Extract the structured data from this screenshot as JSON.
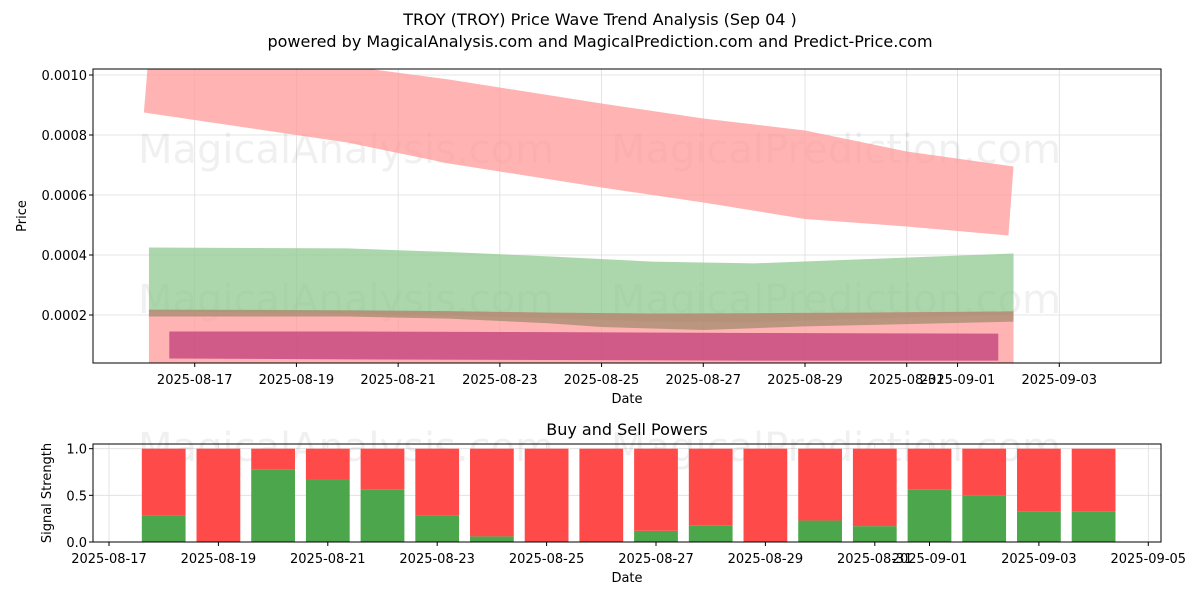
{
  "header": {
    "title": "TROY (TROY) Price Wave Trend Analysis (Sep 04 )",
    "subtitle": "powered by MagicalAnalysis.com and MagicalPrediction.com and Predict-Price.com"
  },
  "watermarks": [
    "MagicalAnalysis.com",
    "MagicalPrediction.com"
  ],
  "chart_data": [
    {
      "type": "area",
      "title": "",
      "xlabel": "Date",
      "ylabel": "Price",
      "x_start": "2025-08-16",
      "x_range": [
        "2025-08-15",
        "2025-09-05"
      ],
      "ylim": [
        4e-05,
        0.00102
      ],
      "yticks": [
        0.0002,
        0.0004,
        0.0006,
        0.0008,
        0.001
      ],
      "ytick_labels": [
        "0.0002",
        "0.0004",
        "0.0006",
        "0.0008",
        "0.0010"
      ],
      "xticks": [
        "2025-08-17",
        "2025-08-19",
        "2025-08-21",
        "2025-08-23",
        "2025-08-25",
        "2025-08-27",
        "2025-08-29",
        "2025-08-31",
        "2025-09-01",
        "2025-09-03"
      ],
      "xtick_labels": [
        "2025-08-17",
        "2025-08-19",
        "2025-08-21",
        "2025-08-23",
        "2025-08-25",
        "2025-08-27",
        "2025-08-29",
        "2025-08-31",
        "2025-09-01",
        "2025-09-03"
      ],
      "grid": true,
      "series": [
        {
          "color": "#ff9999",
          "upper": [
            [
              0.1,
              0.00108
            ],
            [
              4,
              0.00103
            ],
            [
              6,
              0.000985
            ],
            [
              9,
              0.000905
            ],
            [
              11,
              0.000855
            ],
            [
              13,
              0.000815
            ],
            [
              15,
              0.000745
            ],
            [
              17.1,
              0.000695
            ]
          ],
          "lower": [
            [
              0.0,
              0.000875
            ],
            [
              4,
              0.000775
            ],
            [
              6,
              0.000705
            ],
            [
              9,
              0.000625
            ],
            [
              11,
              0.000575
            ],
            [
              13,
              0.00052
            ],
            [
              15,
              0.000495
            ],
            [
              17.0,
              0.000465
            ]
          ]
        },
        {
          "color": "#90c990",
          "upper": [
            [
              0.1,
              0.000425
            ],
            [
              4,
              0.000422
            ],
            [
              6,
              0.00041
            ],
            [
              8,
              0.000395
            ],
            [
              10,
              0.000378
            ],
            [
              12,
              0.000372
            ],
            [
              14,
              0.000385
            ],
            [
              17.1,
              0.000405
            ]
          ],
          "lower": [
            [
              0.1,
              0.000212
            ],
            [
              4,
              0.000205
            ],
            [
              6,
              0.000198
            ],
            [
              8,
              0.00019
            ],
            [
              10,
              0.000178
            ],
            [
              12,
              0.000175
            ],
            [
              14,
              0.000188
            ],
            [
              17.1,
              0.000202
            ]
          ]
        },
        {
          "color": "#ff9999",
          "upper": [
            [
              0.1,
              0.000215
            ],
            [
              4,
              0.000213
            ],
            [
              6,
              0.000212
            ],
            [
              8,
              0.000208
            ],
            [
              10,
              0.000205
            ],
            [
              12,
              0.000206
            ],
            [
              14,
              0.000208
            ],
            [
              17.1,
              0.000212
            ]
          ],
          "lower": [
            [
              0.1,
              4e-05
            ],
            [
              17.1,
              4e-05
            ]
          ]
        },
        {
          "color": "#a38b6d",
          "upper": [
            [
              0.1,
              0.000218
            ],
            [
              4,
              0.000216
            ],
            [
              6,
              0.000213
            ],
            [
              8,
              0.000208
            ],
            [
              10,
              0.000205
            ],
            [
              12,
              0.000206
            ],
            [
              14,
              0.000208
            ],
            [
              17.1,
              0.000212
            ]
          ],
          "lower": [
            [
              0.1,
              0.000195
            ],
            [
              4,
              0.000195
            ],
            [
              6,
              0.000188
            ],
            [
              8,
              0.000172
            ],
            [
              9,
              0.00016
            ],
            [
              11,
              0.00015
            ],
            [
              13,
              0.000162
            ],
            [
              17.1,
              0.000178
            ]
          ]
        },
        {
          "color": "#c03c7a",
          "upper": [
            [
              0.5,
              0.000145
            ],
            [
              4,
              0.000145
            ],
            [
              8,
              0.000143
            ],
            [
              12,
              0.00014
            ],
            [
              16.8,
              0.000138
            ]
          ],
          "lower": [
            [
              0.5,
              5.5e-05
            ],
            [
              4,
              5.2e-05
            ],
            [
              8,
              5e-05
            ],
            [
              12,
              4.8e-05
            ],
            [
              16.8,
              4.8e-05
            ]
          ]
        }
      ]
    },
    {
      "type": "bar",
      "title": "Buy and Sell Powers",
      "xlabel": "Date",
      "ylabel": "Signal Strength",
      "x_start": "2025-08-17",
      "ylim": [
        0,
        1.05
      ],
      "yticks": [
        0.0,
        0.5,
        1.0
      ],
      "ytick_labels": [
        "0.0",
        "0.5",
        "1.0"
      ],
      "xticks": [
        "2025-08-17",
        "2025-08-19",
        "2025-08-21",
        "2025-08-23",
        "2025-08-25",
        "2025-08-27",
        "2025-08-29",
        "2025-08-31",
        "2025-09-01",
        "2025-09-03",
        "2025-09-05"
      ],
      "xtick_labels": [
        "2025-08-17",
        "2025-08-19",
        "2025-08-21",
        "2025-08-23",
        "2025-08-25",
        "2025-08-27",
        "2025-08-29",
        "2025-08-31",
        "2025-09-01",
        "2025-09-03",
        "2025-09-05"
      ],
      "categories": [
        "2025-08-18",
        "2025-08-19",
        "2025-08-20",
        "2025-08-21",
        "2025-08-22",
        "2025-08-23",
        "2025-08-24",
        "2025-08-25",
        "2025-08-26",
        "2025-08-27",
        "2025-08-28",
        "2025-08-29",
        "2025-08-30",
        "2025-08-31",
        "2025-09-01",
        "2025-09-02",
        "2025-09-03",
        "2025-09-04"
      ],
      "series": [
        {
          "color": "#4ca64c",
          "values": [
            0.28,
            0.0,
            0.78,
            0.67,
            0.56,
            0.28,
            0.06,
            0.0,
            0.0,
            0.12,
            0.18,
            0.0,
            0.23,
            0.17,
            0.56,
            0.5,
            0.33,
            0.33
          ]
        },
        {
          "color": "#ff4a4a",
          "values": [
            0.72,
            1.0,
            0.22,
            0.33,
            0.44,
            0.72,
            0.94,
            1.0,
            1.0,
            0.88,
            0.82,
            1.0,
            0.77,
            0.83,
            0.44,
            0.5,
            0.67,
            0.67
          ]
        }
      ]
    }
  ]
}
